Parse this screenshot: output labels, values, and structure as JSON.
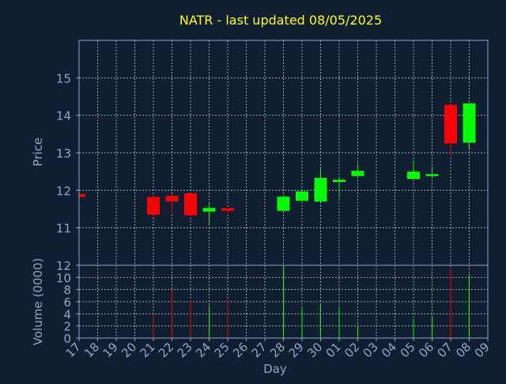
{
  "chart_data": {
    "type": "candlestick",
    "title": "NATR - last updated 08/05/2025",
    "xlabel": "Day",
    "price_ylabel": "Price",
    "volume_ylabel": "Volume (0000)",
    "x_tick_labels": [
      "17",
      "18",
      "19",
      "20",
      "21",
      "22",
      "23",
      "24",
      "25",
      "26",
      "27",
      "28",
      "29",
      "30",
      "01",
      "02",
      "03",
      "04",
      "05",
      "06",
      "07",
      "08",
      "09"
    ],
    "price_ylim": [
      10,
      16
    ],
    "price_ticks": [
      "11",
      "12",
      "13",
      "14",
      "15"
    ],
    "volume_ylim": [
      0,
      12
    ],
    "volume_ticks": [
      "0",
      "2",
      "4",
      "6",
      "8",
      "10",
      "12"
    ],
    "grid": true,
    "colors": {
      "background": "#0f1e30",
      "axis": "#8fa7c9",
      "grid": "#c8d2e0",
      "title": "#ffff00",
      "label": "#8fa7c9",
      "up": "#00ff00",
      "down": "#ff0000"
    },
    "candles": [
      {
        "day": "17",
        "open": 11.9,
        "high": 11.9,
        "low": 11.8,
        "close": 11.82
      },
      {
        "day": "21",
        "open": 11.82,
        "high": 11.84,
        "low": 11.28,
        "close": 11.35
      },
      {
        "day": "22",
        "open": 11.85,
        "high": 11.88,
        "low": 11.38,
        "close": 11.7
      },
      {
        "day": "23",
        "open": 11.92,
        "high": 11.93,
        "low": 11.32,
        "close": 11.33
      },
      {
        "day": "24",
        "open": 11.43,
        "high": 11.64,
        "low": 11.1,
        "close": 11.53
      },
      {
        "day": "25",
        "open": 11.52,
        "high": 11.52,
        "low": 11.38,
        "close": 11.45
      },
      {
        "day": "28",
        "open": 11.45,
        "high": 11.87,
        "low": 11.45,
        "close": 11.83
      },
      {
        "day": "29",
        "open": 11.72,
        "high": 12.0,
        "low": 11.7,
        "close": 11.97
      },
      {
        "day": "30",
        "open": 11.7,
        "high": 12.6,
        "low": 11.68,
        "close": 12.33
      },
      {
        "day": "01",
        "open": 12.22,
        "high": 12.35,
        "low": 11.8,
        "close": 12.28
      },
      {
        "day": "02",
        "open": 12.38,
        "high": 12.72,
        "low": 12.38,
        "close": 12.52
      },
      {
        "day": "05",
        "open": 12.3,
        "high": 12.8,
        "low": 12.3,
        "close": 12.5
      },
      {
        "day": "06",
        "open": 12.38,
        "high": 12.62,
        "low": 12.35,
        "close": 12.43
      },
      {
        "day": "07",
        "open": 14.28,
        "high": 14.3,
        "low": 12.92,
        "close": 13.25
      },
      {
        "day": "08",
        "open": 13.27,
        "high": 14.32,
        "low": 13.12,
        "close": 14.32
      }
    ],
    "volume": [
      {
        "day": "21",
        "value": 4.0,
        "dir": "down"
      },
      {
        "day": "22",
        "value": 8.0,
        "dir": "down"
      },
      {
        "day": "23",
        "value": 6.3,
        "dir": "down"
      },
      {
        "day": "24",
        "value": 5.3,
        "dir": "up"
      },
      {
        "day": "25",
        "value": 6.3,
        "dir": "down"
      },
      {
        "day": "28",
        "value": 12.0,
        "dir": "up"
      },
      {
        "day": "29",
        "value": 5.2,
        "dir": "up"
      },
      {
        "day": "30",
        "value": 5.6,
        "dir": "up"
      },
      {
        "day": "01",
        "value": 5.2,
        "dir": "up"
      },
      {
        "day": "02",
        "value": 2.0,
        "dir": "up"
      },
      {
        "day": "05",
        "value": 3.2,
        "dir": "up"
      },
      {
        "day": "06",
        "value": 3.5,
        "dir": "up"
      },
      {
        "day": "07",
        "value": 11.5,
        "dir": "down"
      },
      {
        "day": "08",
        "value": 10.5,
        "dir": "up"
      }
    ]
  }
}
